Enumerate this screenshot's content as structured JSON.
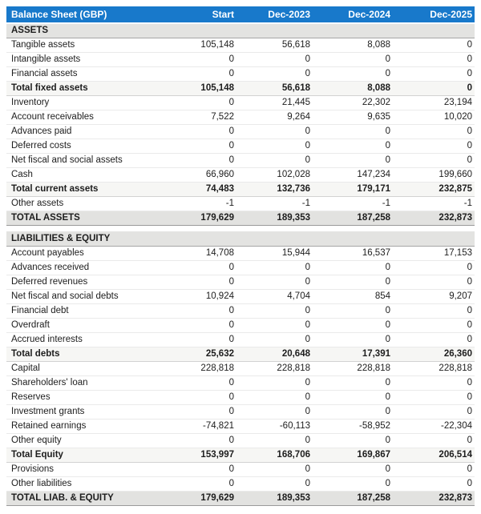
{
  "colors": {
    "header_bg": "#1879cb",
    "header_text": "#ffffff",
    "section_row_bg": "#e3e3e1",
    "subtotal_row_bg": "#f6f6f4",
    "grand_total_row_bg": "#e2e2e0",
    "body_text": "#1d1d1d"
  },
  "chart_data": {
    "type": "table",
    "title": "Balance Sheet (GBP)",
    "columns": [
      "Start",
      "Dec-2023",
      "Dec-2024",
      "Dec-2025"
    ],
    "rows": [
      {
        "type": "section",
        "label": "ASSETS",
        "values": [
          "",
          "",
          "",
          ""
        ]
      },
      {
        "type": "data",
        "label": "Tangible assets",
        "values": [
          "105,148",
          "56,618",
          "8,088",
          "0"
        ]
      },
      {
        "type": "data",
        "label": "Intangible assets",
        "values": [
          "0",
          "0",
          "0",
          "0"
        ]
      },
      {
        "type": "data",
        "label": "Financial assets",
        "values": [
          "0",
          "0",
          "0",
          "0"
        ]
      },
      {
        "type": "subtotal",
        "label": "Total fixed assets",
        "values": [
          "105,148",
          "56,618",
          "8,088",
          "0"
        ]
      },
      {
        "type": "data",
        "label": "Inventory",
        "values": [
          "0",
          "21,445",
          "22,302",
          "23,194"
        ]
      },
      {
        "type": "data",
        "label": "Account receivables",
        "values": [
          "7,522",
          "9,264",
          "9,635",
          "10,020"
        ]
      },
      {
        "type": "data",
        "label": "Advances paid",
        "values": [
          "0",
          "0",
          "0",
          "0"
        ]
      },
      {
        "type": "data",
        "label": "Deferred costs",
        "values": [
          "0",
          "0",
          "0",
          "0"
        ]
      },
      {
        "type": "data",
        "label": "Net fiscal and social assets",
        "values": [
          "0",
          "0",
          "0",
          "0"
        ]
      },
      {
        "type": "data",
        "label": "Cash",
        "values": [
          "66,960",
          "102,028",
          "147,234",
          "199,660"
        ]
      },
      {
        "type": "subtotal",
        "label": "Total current assets",
        "values": [
          "74,483",
          "132,736",
          "179,171",
          "232,875"
        ]
      },
      {
        "type": "data",
        "label": "Other assets",
        "values": [
          "-1",
          "-1",
          "-1",
          "-1"
        ]
      },
      {
        "type": "grandtotal",
        "label": "TOTAL ASSETS",
        "values": [
          "179,629",
          "189,353",
          "187,258",
          "232,873"
        ]
      },
      {
        "type": "spacer",
        "label": "",
        "values": [
          "",
          "",
          "",
          ""
        ]
      },
      {
        "type": "section",
        "label": "LIABILITIES & EQUITY",
        "values": [
          "",
          "",
          "",
          ""
        ]
      },
      {
        "type": "data",
        "label": "Account payables",
        "values": [
          "14,708",
          "15,944",
          "16,537",
          "17,153"
        ]
      },
      {
        "type": "data",
        "label": "Advances received",
        "values": [
          "0",
          "0",
          "0",
          "0"
        ]
      },
      {
        "type": "data",
        "label": "Deferred revenues",
        "values": [
          "0",
          "0",
          "0",
          "0"
        ]
      },
      {
        "type": "data",
        "label": "Net fiscal and social debts",
        "values": [
          "10,924",
          "4,704",
          "854",
          "9,207"
        ]
      },
      {
        "type": "data",
        "label": "Financial debt",
        "values": [
          "0",
          "0",
          "0",
          "0"
        ]
      },
      {
        "type": "data",
        "label": "Overdraft",
        "values": [
          "0",
          "0",
          "0",
          "0"
        ]
      },
      {
        "type": "data",
        "label": "Accrued interests",
        "values": [
          "0",
          "0",
          "0",
          "0"
        ]
      },
      {
        "type": "subtotal",
        "label": "Total debts",
        "values": [
          "25,632",
          "20,648",
          "17,391",
          "26,360"
        ]
      },
      {
        "type": "data",
        "label": "Capital",
        "values": [
          "228,818",
          "228,818",
          "228,818",
          "228,818"
        ]
      },
      {
        "type": "data",
        "label": "Shareholders' loan",
        "values": [
          "0",
          "0",
          "0",
          "0"
        ]
      },
      {
        "type": "data",
        "label": "Reserves",
        "values": [
          "0",
          "0",
          "0",
          "0"
        ]
      },
      {
        "type": "data",
        "label": "Investment grants",
        "values": [
          "0",
          "0",
          "0",
          "0"
        ]
      },
      {
        "type": "data",
        "label": "Retained earnings",
        "values": [
          "-74,821",
          "-60,113",
          "-58,952",
          "-22,304"
        ]
      },
      {
        "type": "data",
        "label": "Other equity",
        "values": [
          "0",
          "0",
          "0",
          "0"
        ]
      },
      {
        "type": "subtotal",
        "label": "Total Equity",
        "values": [
          "153,997",
          "168,706",
          "169,867",
          "206,514"
        ]
      },
      {
        "type": "data",
        "label": "Provisions",
        "values": [
          "0",
          "0",
          "0",
          "0"
        ]
      },
      {
        "type": "data",
        "label": "Other liabilities",
        "values": [
          "0",
          "0",
          "0",
          "0"
        ]
      },
      {
        "type": "grandtotal",
        "label": "TOTAL LIAB. & EQUITY",
        "values": [
          "179,629",
          "189,353",
          "187,258",
          "232,873"
        ]
      }
    ]
  }
}
